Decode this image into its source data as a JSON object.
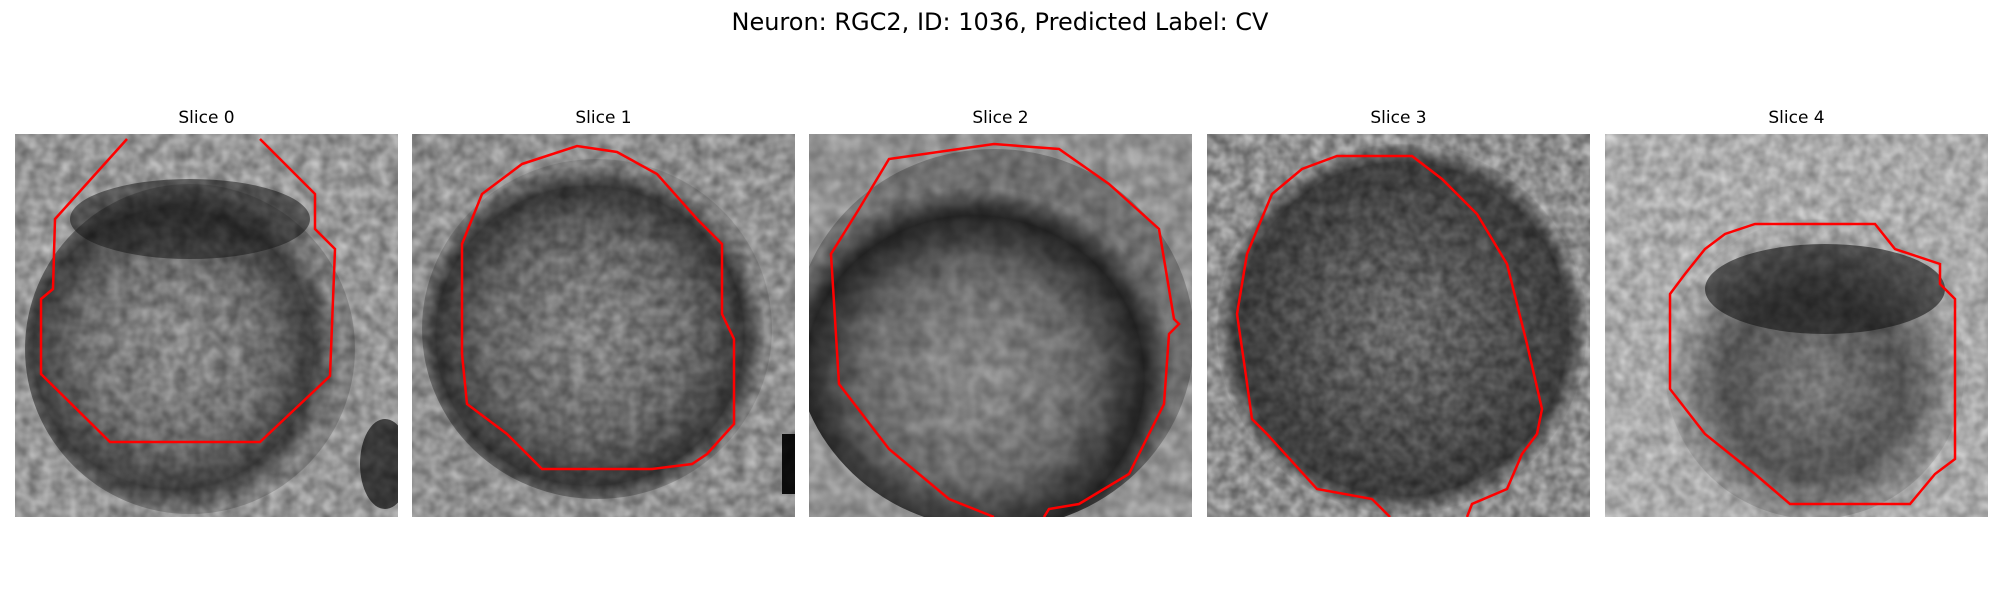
{
  "figure": {
    "title": "Neuron: RGC2, ID: 1036, Predicted Label: CV",
    "contour_color": "#ff0000"
  },
  "panels": [
    {
      "title": "Slice 0"
    },
    {
      "title": "Slice 1"
    },
    {
      "title": "Slice 2"
    },
    {
      "title": "Slice 3"
    },
    {
      "title": "Slice 4"
    }
  ]
}
